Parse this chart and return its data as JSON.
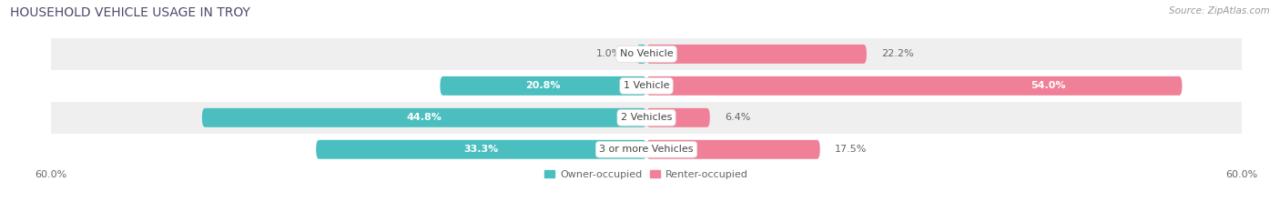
{
  "title": "HOUSEHOLD VEHICLE USAGE IN TROY",
  "source": "Source: ZipAtlas.com",
  "categories": [
    "No Vehicle",
    "1 Vehicle",
    "2 Vehicles",
    "3 or more Vehicles"
  ],
  "owner_values": [
    1.0,
    20.8,
    44.8,
    33.3
  ],
  "renter_values": [
    22.2,
    54.0,
    6.4,
    17.5
  ],
  "owner_color": "#4bbfbf",
  "renter_color": "#f08098",
  "owner_label": "Owner-occupied",
  "renter_label": "Renter-occupied",
  "xlim": [
    -60,
    60
  ],
  "bar_height": 0.6,
  "title_fontsize": 10,
  "source_fontsize": 7.5,
  "label_fontsize": 8,
  "category_fontsize": 8,
  "legend_fontsize": 8,
  "tick_fontsize": 8,
  "background_color": "#ffffff",
  "strip_color_light": "#efefef",
  "strip_color_white": "#ffffff"
}
